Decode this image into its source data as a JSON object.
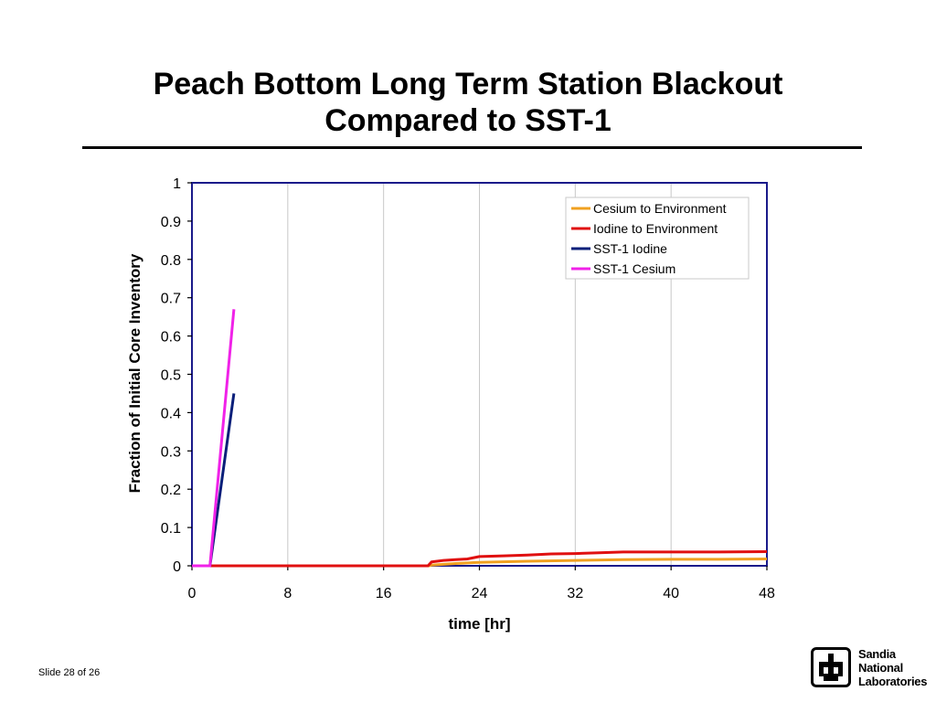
{
  "slide": {
    "title_line1": "Peach Bottom Long Term Station Blackout",
    "title_line2": "Compared to SST-1",
    "footer": "Slide 28 of 26"
  },
  "logo": {
    "line1": "Sandia",
    "line2": "National",
    "line3": "Laboratories"
  },
  "chart_data": {
    "type": "line",
    "title": "",
    "xlabel": "time [hr]",
    "ylabel": "Fraction of Initial Core Inventory",
    "xlim": [
      0,
      48
    ],
    "ylim": [
      0,
      1
    ],
    "xticks": [
      0,
      8,
      16,
      24,
      32,
      40,
      48
    ],
    "yticks": [
      0,
      0.1,
      0.2,
      0.3,
      0.4,
      0.5,
      0.6,
      0.7,
      0.8,
      0.9,
      1
    ],
    "grid": "vertical",
    "legend_position": "top-right",
    "series": [
      {
        "name": "Cesium to Environment",
        "color": "#f0a020",
        "points": [
          [
            0,
            0
          ],
          [
            19.8,
            0
          ],
          [
            20,
            0.002
          ],
          [
            22,
            0.006
          ],
          [
            24,
            0.009
          ],
          [
            28,
            0.012
          ],
          [
            32,
            0.014
          ],
          [
            36,
            0.016
          ],
          [
            40,
            0.017
          ],
          [
            44,
            0.017
          ],
          [
            48,
            0.018
          ]
        ]
      },
      {
        "name": "Iodine to Environment",
        "color": "#e01010",
        "points": [
          [
            0,
            0
          ],
          [
            19.7,
            0
          ],
          [
            20,
            0.01
          ],
          [
            21,
            0.014
          ],
          [
            22,
            0.016
          ],
          [
            23,
            0.018
          ],
          [
            24,
            0.024
          ],
          [
            26,
            0.026
          ],
          [
            28,
            0.028
          ],
          [
            30,
            0.031
          ],
          [
            32,
            0.032
          ],
          [
            34,
            0.034
          ],
          [
            36,
            0.036
          ],
          [
            40,
            0.036
          ],
          [
            44,
            0.036
          ],
          [
            48,
            0.037
          ]
        ]
      },
      {
        "name": "SST-1 Iodine",
        "color": "#0a1f7a",
        "points": [
          [
            0,
            0
          ],
          [
            1.5,
            0
          ],
          [
            3.5,
            0.45
          ]
        ]
      },
      {
        "name": "SST-1 Cesium",
        "color": "#f022e8",
        "points": [
          [
            0,
            0
          ],
          [
            1.5,
            0
          ],
          [
            3.5,
            0.67
          ]
        ]
      }
    ]
  }
}
